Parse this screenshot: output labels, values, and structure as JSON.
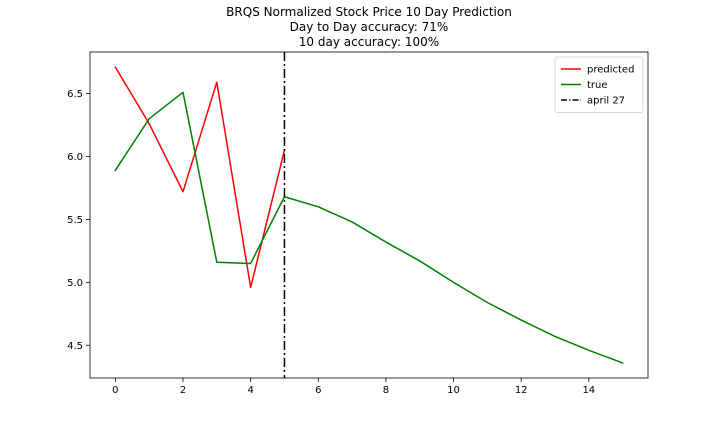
{
  "chart_data": {
    "type": "line",
    "title_lines": [
      "BRQS Normalized Stock Price 10 Day Prediction",
      "Day to Day accuracy: 71%",
      "10 day accuracy: 100%"
    ],
    "xlabel": "",
    "ylabel": "",
    "xlim": [
      -0.75,
      15.75
    ],
    "ylim": [
      4.24,
      6.83
    ],
    "xticks": [
      0,
      2,
      4,
      6,
      8,
      10,
      12,
      14
    ],
    "yticks": [
      4.5,
      5.0,
      5.5,
      6.0,
      6.5
    ],
    "xtick_labels": [
      "0",
      "2",
      "4",
      "6",
      "8",
      "10",
      "12",
      "14"
    ],
    "ytick_labels": [
      "4.5",
      "5.0",
      "5.5",
      "6.0",
      "6.5"
    ],
    "grid": false,
    "legend_position": "top-right",
    "series": [
      {
        "name": "predicted",
        "color": "#ff0000",
        "style": "solid",
        "x": [
          0,
          1,
          2,
          3,
          4,
          5
        ],
        "values": [
          6.71,
          6.26,
          5.72,
          6.59,
          4.96,
          6.05
        ]
      },
      {
        "name": "true",
        "color": "#008000",
        "style": "solid",
        "x": [
          0,
          1,
          2,
          3,
          4,
          5,
          6,
          7,
          8,
          9,
          10,
          11,
          12,
          13,
          14,
          15
        ],
        "values": [
          5.89,
          6.3,
          6.51,
          5.16,
          5.15,
          5.68,
          5.6,
          5.48,
          5.32,
          5.17,
          5.0,
          4.84,
          4.7,
          4.57,
          4.46,
          4.36
        ]
      }
    ],
    "vline": {
      "name": "april 27",
      "x": 5,
      "color": "#000000",
      "style": "dashdot"
    }
  }
}
